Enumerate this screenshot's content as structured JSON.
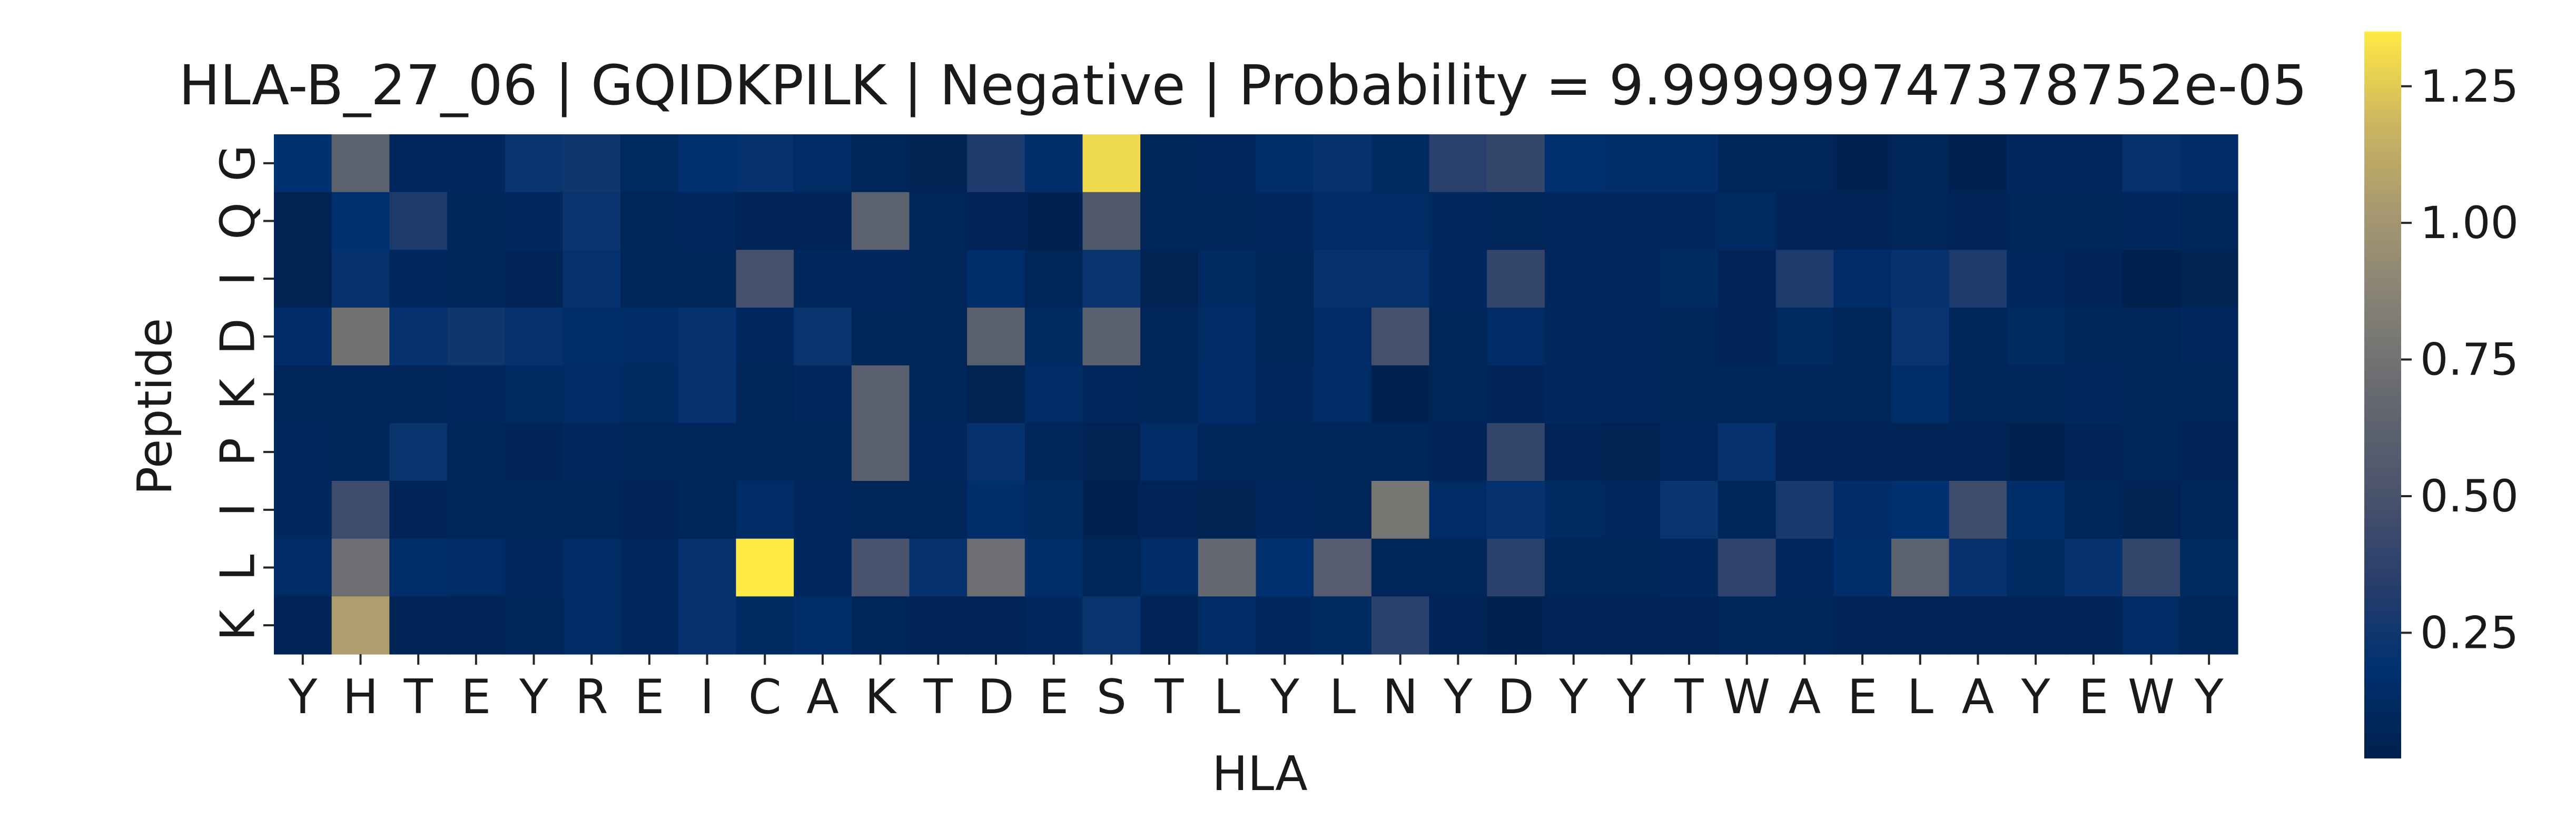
{
  "chart_data": {
    "type": "heatmap",
    "title": "HLA-B_27_06 | GQIDKPILK | Negative | Probability = 9.999999747378752e-05",
    "xlabel": "HLA",
    "ylabel": "Peptide",
    "x_categories": [
      "Y",
      "H",
      "T",
      "E",
      "Y",
      "R",
      "E",
      "I",
      "C",
      "A",
      "K",
      "T",
      "D",
      "E",
      "S",
      "T",
      "L",
      "Y",
      "L",
      "N",
      "Y",
      "D",
      "Y",
      "Y",
      "T",
      "W",
      "A",
      "E",
      "L",
      "A",
      "Y",
      "E",
      "W",
      "Y"
    ],
    "y_categories": [
      "G",
      "Q",
      "I",
      "D",
      "K",
      "P",
      "I",
      "L",
      "K"
    ],
    "colormap": "cividis",
    "colorbar": {
      "vmin": 0.02,
      "vmax": 1.35,
      "ticks": [
        0.25,
        0.5,
        0.75,
        1.0,
        1.25
      ],
      "tick_labels": [
        "0.25",
        "0.50",
        "0.75",
        "1.00",
        "1.25"
      ]
    },
    "grid": false,
    "values": [
      [
        0.18,
        0.62,
        0.1,
        0.1,
        0.22,
        0.25,
        0.12,
        0.18,
        0.2,
        0.14,
        0.08,
        0.05,
        0.3,
        0.16,
        1.3,
        0.08,
        0.1,
        0.16,
        0.2,
        0.12,
        0.35,
        0.4,
        0.18,
        0.16,
        0.16,
        0.08,
        0.08,
        0.04,
        0.08,
        0.04,
        0.1,
        0.1,
        0.2,
        0.15
      ],
      [
        0.05,
        0.18,
        0.3,
        0.08,
        0.1,
        0.22,
        0.08,
        0.1,
        0.06,
        0.06,
        0.62,
        0.08,
        0.06,
        0.04,
        0.55,
        0.08,
        0.08,
        0.1,
        0.14,
        0.14,
        0.1,
        0.08,
        0.1,
        0.1,
        0.1,
        0.12,
        0.06,
        0.06,
        0.08,
        0.06,
        0.08,
        0.08,
        0.1,
        0.08
      ],
      [
        0.05,
        0.2,
        0.1,
        0.08,
        0.06,
        0.2,
        0.08,
        0.08,
        0.48,
        0.1,
        0.1,
        0.08,
        0.16,
        0.08,
        0.22,
        0.05,
        0.12,
        0.08,
        0.2,
        0.2,
        0.1,
        0.4,
        0.1,
        0.1,
        0.12,
        0.06,
        0.3,
        0.15,
        0.2,
        0.3,
        0.1,
        0.06,
        0.03,
        0.05
      ],
      [
        0.15,
        0.75,
        0.2,
        0.25,
        0.2,
        0.16,
        0.14,
        0.2,
        0.1,
        0.22,
        0.08,
        0.08,
        0.6,
        0.12,
        0.6,
        0.08,
        0.14,
        0.08,
        0.14,
        0.48,
        0.08,
        0.14,
        0.1,
        0.1,
        0.08,
        0.06,
        0.12,
        0.08,
        0.22,
        0.08,
        0.12,
        0.08,
        0.08,
        0.1
      ],
      [
        0.08,
        0.08,
        0.08,
        0.1,
        0.12,
        0.14,
        0.12,
        0.2,
        0.08,
        0.1,
        0.6,
        0.08,
        0.05,
        0.14,
        0.1,
        0.08,
        0.15,
        0.1,
        0.14,
        0.04,
        0.08,
        0.06,
        0.1,
        0.1,
        0.08,
        0.08,
        0.08,
        0.08,
        0.16,
        0.08,
        0.08,
        0.1,
        0.08,
        0.08
      ],
      [
        0.1,
        0.08,
        0.22,
        0.08,
        0.06,
        0.1,
        0.08,
        0.08,
        0.08,
        0.08,
        0.6,
        0.1,
        0.2,
        0.08,
        0.05,
        0.14,
        0.08,
        0.08,
        0.08,
        0.08,
        0.06,
        0.4,
        0.06,
        0.05,
        0.1,
        0.2,
        0.06,
        0.06,
        0.06,
        0.06,
        0.04,
        0.06,
        0.08,
        0.06
      ],
      [
        0.1,
        0.45,
        0.06,
        0.08,
        0.08,
        0.08,
        0.06,
        0.08,
        0.14,
        0.1,
        0.08,
        0.08,
        0.16,
        0.12,
        0.04,
        0.06,
        0.05,
        0.1,
        0.08,
        0.78,
        0.14,
        0.2,
        0.12,
        0.1,
        0.22,
        0.08,
        0.28,
        0.15,
        0.18,
        0.45,
        0.16,
        0.08,
        0.05,
        0.08
      ],
      [
        0.14,
        0.72,
        0.16,
        0.14,
        0.1,
        0.14,
        0.1,
        0.2,
        1.35,
        0.1,
        0.5,
        0.2,
        0.72,
        0.16,
        0.08,
        0.14,
        0.68,
        0.18,
        0.58,
        0.08,
        0.08,
        0.35,
        0.08,
        0.08,
        0.1,
        0.38,
        0.1,
        0.16,
        0.62,
        0.2,
        0.12,
        0.2,
        0.4,
        0.12
      ],
      [
        0.06,
        1.05,
        0.06,
        0.06,
        0.08,
        0.14,
        0.1,
        0.2,
        0.12,
        0.16,
        0.08,
        0.06,
        0.06,
        0.1,
        0.22,
        0.06,
        0.14,
        0.1,
        0.12,
        0.35,
        0.06,
        0.04,
        0.06,
        0.06,
        0.06,
        0.08,
        0.08,
        0.06,
        0.06,
        0.06,
        0.06,
        0.06,
        0.14,
        0.08
      ]
    ]
  }
}
